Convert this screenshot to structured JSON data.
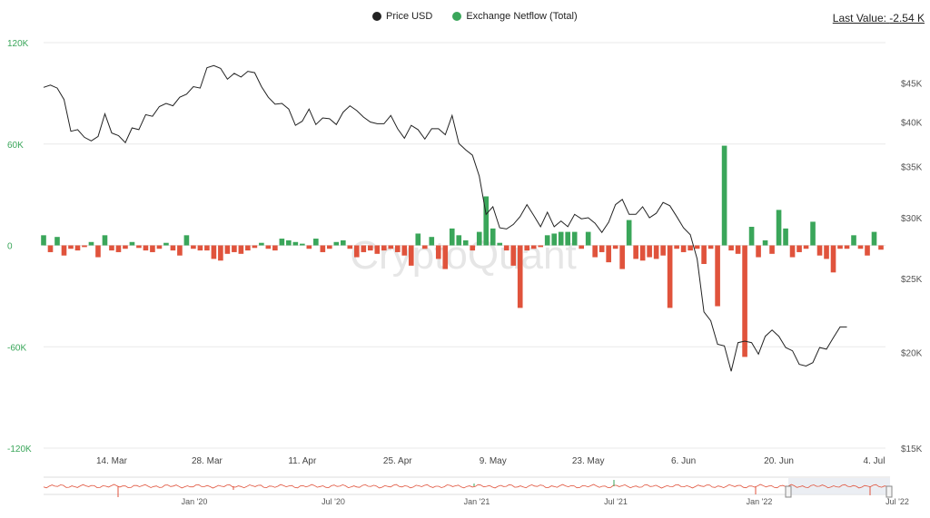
{
  "legend": {
    "price_label": "Price USD",
    "netflow_label": "Exchange Netflow (Total)"
  },
  "last_value": {
    "label": "Last Value:",
    "value": "-2.54 K"
  },
  "watermark": "CryptoQuant",
  "colors": {
    "price": "#222222",
    "positive": "#3aa65a",
    "negative": "#e0533c",
    "grid": "#e8e8e8",
    "left_axis_text": "#3aa65a"
  },
  "chart_data": {
    "type": "line+bar",
    "x_tick_labels": [
      "14. Mar",
      "28. Mar",
      "11. Apr",
      "25. Apr",
      "9. May",
      "23. May",
      "6. Jun",
      "20. Jun",
      "4. Jul"
    ],
    "x_tick_days": [
      10,
      24,
      38,
      52,
      66,
      80,
      94,
      108,
      122
    ],
    "left_axis": {
      "ticks": [
        "120K",
        "60K",
        "0",
        "-60K",
        "-120K"
      ],
      "values": [
        120000,
        60000,
        0,
        -60000,
        -120000
      ],
      "range": [
        -120000,
        120000
      ]
    },
    "right_axis": {
      "ticks": [
        "$45K",
        "$40K",
        "$35K",
        "$30K",
        "$25K",
        "$20K",
        "$15K"
      ],
      "values": [
        45000,
        40000,
        35000,
        30000,
        25000,
        20000,
        15000
      ],
      "scale": "log",
      "range": [
        15000,
        52000
      ]
    },
    "series": [
      {
        "name": "Price USD",
        "kind": "line",
        "points": [
          [
            0,
            44400
          ],
          [
            1,
            44700
          ],
          [
            2,
            44300
          ],
          [
            3,
            42800
          ],
          [
            4,
            38900
          ],
          [
            5,
            39100
          ],
          [
            6,
            38200
          ],
          [
            7,
            37800
          ],
          [
            8,
            38300
          ],
          [
            9,
            41000
          ],
          [
            10,
            38700
          ],
          [
            11,
            38400
          ],
          [
            12,
            37600
          ],
          [
            13,
            39300
          ],
          [
            14,
            39100
          ],
          [
            15,
            40900
          ],
          [
            16,
            40700
          ],
          [
            17,
            41900
          ],
          [
            18,
            42300
          ],
          [
            19,
            42000
          ],
          [
            20,
            43100
          ],
          [
            21,
            43500
          ],
          [
            22,
            44500
          ],
          [
            23,
            44300
          ],
          [
            24,
            47100
          ],
          [
            25,
            47400
          ],
          [
            26,
            47000
          ],
          [
            27,
            45500
          ],
          [
            28,
            46300
          ],
          [
            29,
            45800
          ],
          [
            30,
            46600
          ],
          [
            31,
            46400
          ],
          [
            32,
            44500
          ],
          [
            33,
            43100
          ],
          [
            34,
            42200
          ],
          [
            35,
            42300
          ],
          [
            36,
            41600
          ],
          [
            37,
            39600
          ],
          [
            38,
            40100
          ],
          [
            39,
            41600
          ],
          [
            40,
            39700
          ],
          [
            41,
            40500
          ],
          [
            42,
            40400
          ],
          [
            43,
            39700
          ],
          [
            44,
            41200
          ],
          [
            45,
            42000
          ],
          [
            46,
            41400
          ],
          [
            47,
            40600
          ],
          [
            48,
            40000
          ],
          [
            49,
            39800
          ],
          [
            50,
            39800
          ],
          [
            51,
            40800
          ],
          [
            52,
            39200
          ],
          [
            53,
            38100
          ],
          [
            54,
            39600
          ],
          [
            55,
            39100
          ],
          [
            56,
            38000
          ],
          [
            57,
            39200
          ],
          [
            58,
            39200
          ],
          [
            59,
            38500
          ],
          [
            60,
            40800
          ],
          [
            61,
            37500
          ],
          [
            62,
            36800
          ],
          [
            63,
            36200
          ],
          [
            64,
            34000
          ],
          [
            65,
            30300
          ],
          [
            66,
            31000
          ],
          [
            67,
            29100
          ],
          [
            68,
            29000
          ],
          [
            69,
            29400
          ],
          [
            70,
            30100
          ],
          [
            71,
            31200
          ],
          [
            72,
            30200
          ],
          [
            73,
            29200
          ],
          [
            74,
            30500
          ],
          [
            75,
            29200
          ],
          [
            76,
            29700
          ],
          [
            77,
            29200
          ],
          [
            78,
            30300
          ],
          [
            79,
            29900
          ],
          [
            80,
            30000
          ],
          [
            81,
            29500
          ],
          [
            82,
            28700
          ],
          [
            83,
            29600
          ],
          [
            84,
            31200
          ],
          [
            85,
            31700
          ],
          [
            86,
            30300
          ],
          [
            87,
            30300
          ],
          [
            88,
            31000
          ],
          [
            89,
            30000
          ],
          [
            90,
            30400
          ],
          [
            91,
            31400
          ],
          [
            92,
            31100
          ],
          [
            93,
            30100
          ],
          [
            94,
            29100
          ],
          [
            95,
            28500
          ],
          [
            96,
            26500
          ],
          [
            97,
            22600
          ],
          [
            98,
            22000
          ],
          [
            99,
            20500
          ],
          [
            100,
            20400
          ],
          [
            101,
            18900
          ],
          [
            102,
            20600
          ],
          [
            103,
            20700
          ],
          [
            104,
            20600
          ],
          [
            105,
            19900
          ],
          [
            106,
            21000
          ],
          [
            107,
            21400
          ],
          [
            108,
            21000
          ],
          [
            109,
            20300
          ],
          [
            110,
            20100
          ],
          [
            111,
            19300
          ],
          [
            112,
            19200
          ],
          [
            113,
            19400
          ],
          [
            114,
            20300
          ],
          [
            115,
            20200
          ],
          [
            116,
            20900
          ],
          [
            117,
            21600
          ],
          [
            118,
            21600
          ]
        ]
      },
      {
        "name": "Exchange Netflow (Total)",
        "kind": "bar",
        "points": [
          [
            0,
            6000
          ],
          [
            1,
            -4000
          ],
          [
            2,
            5000
          ],
          [
            3,
            -6000
          ],
          [
            4,
            -2000
          ],
          [
            5,
            -3000
          ],
          [
            6,
            -1000
          ],
          [
            7,
            2000
          ],
          [
            8,
            -7000
          ],
          [
            9,
            6000
          ],
          [
            10,
            -3000
          ],
          [
            11,
            -4000
          ],
          [
            12,
            -2000
          ],
          [
            13,
            2000
          ],
          [
            14,
            -1500
          ],
          [
            15,
            -3000
          ],
          [
            16,
            -4000
          ],
          [
            17,
            -2000
          ],
          [
            18,
            1500
          ],
          [
            19,
            -3000
          ],
          [
            20,
            -6000
          ],
          [
            21,
            6000
          ],
          [
            22,
            -2000
          ],
          [
            23,
            -3000
          ],
          [
            24,
            -3000
          ],
          [
            25,
            -8000
          ],
          [
            26,
            -9000
          ],
          [
            27,
            -5000
          ],
          [
            28,
            -4000
          ],
          [
            29,
            -5000
          ],
          [
            30,
            -3000
          ],
          [
            31,
            -1500
          ],
          [
            32,
            1500
          ],
          [
            33,
            -2000
          ],
          [
            34,
            -3000
          ],
          [
            35,
            4000
          ],
          [
            36,
            3000
          ],
          [
            37,
            2000
          ],
          [
            38,
            1000
          ],
          [
            39,
            -2000
          ],
          [
            40,
            4000
          ],
          [
            41,
            -4000
          ],
          [
            42,
            -2000
          ],
          [
            43,
            2000
          ],
          [
            44,
            3000
          ],
          [
            45,
            -2000
          ],
          [
            46,
            -7000
          ],
          [
            47,
            -4000
          ],
          [
            48,
            -3000
          ],
          [
            49,
            -5000
          ],
          [
            50,
            -3000
          ],
          [
            51,
            -2000
          ],
          [
            52,
            -4000
          ],
          [
            53,
            -6000
          ],
          [
            54,
            -12000
          ],
          [
            55,
            7000
          ],
          [
            56,
            -2000
          ],
          [
            57,
            5000
          ],
          [
            58,
            -8000
          ],
          [
            59,
            -14000
          ],
          [
            60,
            10000
          ],
          [
            61,
            6000
          ],
          [
            62,
            3000
          ],
          [
            63,
            -3000
          ],
          [
            64,
            8000
          ],
          [
            65,
            29000
          ],
          [
            66,
            10000
          ],
          [
            67,
            1500
          ],
          [
            68,
            -3000
          ],
          [
            69,
            -12000
          ],
          [
            70,
            -37000
          ],
          [
            71,
            -3000
          ],
          [
            72,
            -2000
          ],
          [
            73,
            -1000
          ],
          [
            74,
            6000
          ],
          [
            75,
            7000
          ],
          [
            76,
            8000
          ],
          [
            77,
            8000
          ],
          [
            78,
            8000
          ],
          [
            79,
            -2000
          ],
          [
            80,
            8000
          ],
          [
            81,
            -7000
          ],
          [
            82,
            -4000
          ],
          [
            83,
            -10000
          ],
          [
            84,
            -2000
          ],
          [
            85,
            -14000
          ],
          [
            86,
            15000
          ],
          [
            87,
            -8000
          ],
          [
            88,
            -9000
          ],
          [
            89,
            -7000
          ],
          [
            90,
            -8000
          ],
          [
            91,
            -6000
          ],
          [
            92,
            -37000
          ],
          [
            93,
            -2000
          ],
          [
            94,
            -4000
          ],
          [
            95,
            -3000
          ],
          [
            96,
            -2000
          ],
          [
            97,
            -11000
          ],
          [
            98,
            -2000
          ],
          [
            99,
            -36000
          ],
          [
            100,
            59000
          ],
          [
            101,
            -3000
          ],
          [
            102,
            -5000
          ],
          [
            103,
            -66000
          ],
          [
            104,
            11000
          ],
          [
            105,
            -7000
          ],
          [
            106,
            3000
          ],
          [
            107,
            -5000
          ],
          [
            108,
            21000
          ],
          [
            109,
            10000
          ],
          [
            110,
            -7000
          ],
          [
            111,
            -4000
          ],
          [
            112,
            -2000
          ],
          [
            113,
            14000
          ],
          [
            114,
            -6000
          ],
          [
            115,
            -8000
          ],
          [
            116,
            -16000
          ],
          [
            117,
            -2000
          ],
          [
            118,
            -2000
          ],
          [
            119,
            6000
          ],
          [
            120,
            -2000
          ],
          [
            121,
            -6000
          ],
          [
            122,
            8000
          ],
          [
            123,
            -2540
          ]
        ]
      }
    ]
  },
  "navigator": {
    "labels": [
      "Jan '20",
      "Jul '20",
      "Jan '21",
      "Jul '21",
      "Jan '22",
      "Jul '22"
    ]
  }
}
